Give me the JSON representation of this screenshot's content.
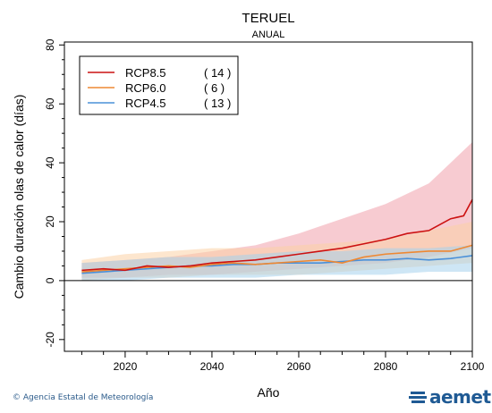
{
  "chart_data": {
    "type": "line",
    "title": "TERUEL",
    "subtitle": "ANUAL",
    "xlabel": "Año",
    "ylabel": "Cambio duración olas de calor (días)",
    "xlim": [
      2006,
      2100
    ],
    "ylim": [
      -24,
      81
    ],
    "xticks": [
      2020,
      2040,
      2060,
      2080,
      2100
    ],
    "yticks": [
      -20,
      0,
      20,
      40,
      60,
      80
    ],
    "legend_position": "top-left",
    "zero_line": true,
    "series": [
      {
        "name": "RCP8.5",
        "count": "( 14 )",
        "color": "#cc1111",
        "band_color": "#f0a0ac",
        "points": [
          [
            2010,
            3.5
          ],
          [
            2015,
            4
          ],
          [
            2020,
            3.5
          ],
          [
            2025,
            5
          ],
          [
            2030,
            4.5
          ],
          [
            2035,
            5
          ],
          [
            2040,
            6
          ],
          [
            2045,
            6.5
          ],
          [
            2050,
            7
          ],
          [
            2055,
            8
          ],
          [
            2060,
            9
          ],
          [
            2065,
            10
          ],
          [
            2070,
            11
          ],
          [
            2075,
            12.5
          ],
          [
            2080,
            14
          ],
          [
            2085,
            16
          ],
          [
            2090,
            17
          ],
          [
            2095,
            21
          ],
          [
            2098,
            22
          ],
          [
            2100,
            27.5
          ]
        ],
        "band_low": [
          [
            2010,
            1
          ],
          [
            2020,
            1
          ],
          [
            2030,
            2
          ],
          [
            2040,
            2
          ],
          [
            2050,
            3
          ],
          [
            2060,
            4
          ],
          [
            2070,
            5
          ],
          [
            2080,
            6
          ],
          [
            2090,
            8
          ],
          [
            2100,
            11
          ]
        ],
        "band_high": [
          [
            2010,
            6
          ],
          [
            2020,
            7
          ],
          [
            2030,
            8
          ],
          [
            2040,
            10
          ],
          [
            2050,
            12
          ],
          [
            2060,
            16
          ],
          [
            2070,
            21
          ],
          [
            2080,
            26
          ],
          [
            2090,
            33
          ],
          [
            2100,
            47
          ]
        ]
      },
      {
        "name": "RCP6.0",
        "count": "(  6 )",
        "color": "#ee8833",
        "band_color": "#fbd2a6",
        "points": [
          [
            2010,
            3
          ],
          [
            2015,
            3.5
          ],
          [
            2020,
            4
          ],
          [
            2025,
            4.5
          ],
          [
            2030,
            5
          ],
          [
            2035,
            4.5
          ],
          [
            2040,
            5.5
          ],
          [
            2045,
            6
          ],
          [
            2050,
            5.5
          ],
          [
            2055,
            6
          ],
          [
            2060,
            6.5
          ],
          [
            2065,
            7
          ],
          [
            2070,
            6
          ],
          [
            2075,
            8
          ],
          [
            2080,
            9
          ],
          [
            2085,
            9.5
          ],
          [
            2090,
            10
          ],
          [
            2095,
            10
          ],
          [
            2100,
            12
          ]
        ],
        "band_low": [
          [
            2010,
            0
          ],
          [
            2020,
            1
          ],
          [
            2030,
            1
          ],
          [
            2040,
            2
          ],
          [
            2050,
            2
          ],
          [
            2060,
            2
          ],
          [
            2070,
            3
          ],
          [
            2080,
            4
          ],
          [
            2090,
            5
          ],
          [
            2100,
            6
          ]
        ],
        "band_high": [
          [
            2010,
            7
          ],
          [
            2020,
            9
          ],
          [
            2030,
            10
          ],
          [
            2040,
            11
          ],
          [
            2050,
            11
          ],
          [
            2060,
            12
          ],
          [
            2070,
            13
          ],
          [
            2080,
            14
          ],
          [
            2090,
            17
          ],
          [
            2100,
            20
          ]
        ]
      },
      {
        "name": "RCP4.5",
        "count": "( 13 )",
        "color": "#4a90d9",
        "band_color": "#a6d2ec",
        "points": [
          [
            2010,
            2.5
          ],
          [
            2015,
            3
          ],
          [
            2020,
            3.5
          ],
          [
            2025,
            4
          ],
          [
            2030,
            4.5
          ],
          [
            2035,
            5
          ],
          [
            2040,
            5
          ],
          [
            2045,
            5.5
          ],
          [
            2050,
            5.5
          ],
          [
            2055,
            6
          ],
          [
            2060,
            6
          ],
          [
            2065,
            6
          ],
          [
            2070,
            6.5
          ],
          [
            2075,
            7
          ],
          [
            2080,
            7
          ],
          [
            2085,
            7.5
          ],
          [
            2090,
            7
          ],
          [
            2095,
            7.5
          ],
          [
            2100,
            8.5
          ]
        ],
        "band_low": [
          [
            2010,
            0
          ],
          [
            2020,
            0
          ],
          [
            2030,
            1
          ],
          [
            2040,
            1
          ],
          [
            2050,
            1
          ],
          [
            2060,
            2
          ],
          [
            2070,
            2
          ],
          [
            2080,
            2
          ],
          [
            2090,
            3
          ],
          [
            2100,
            3
          ]
        ],
        "band_high": [
          [
            2010,
            6
          ],
          [
            2020,
            7
          ],
          [
            2030,
            8
          ],
          [
            2040,
            8
          ],
          [
            2050,
            9
          ],
          [
            2060,
            10
          ],
          [
            2070,
            10
          ],
          [
            2080,
            11
          ],
          [
            2090,
            11
          ],
          [
            2100,
            12
          ]
        ]
      }
    ]
  },
  "footer": {
    "credit": "© Agencia Estatal de Meteorología",
    "logo_text": "aemet"
  }
}
